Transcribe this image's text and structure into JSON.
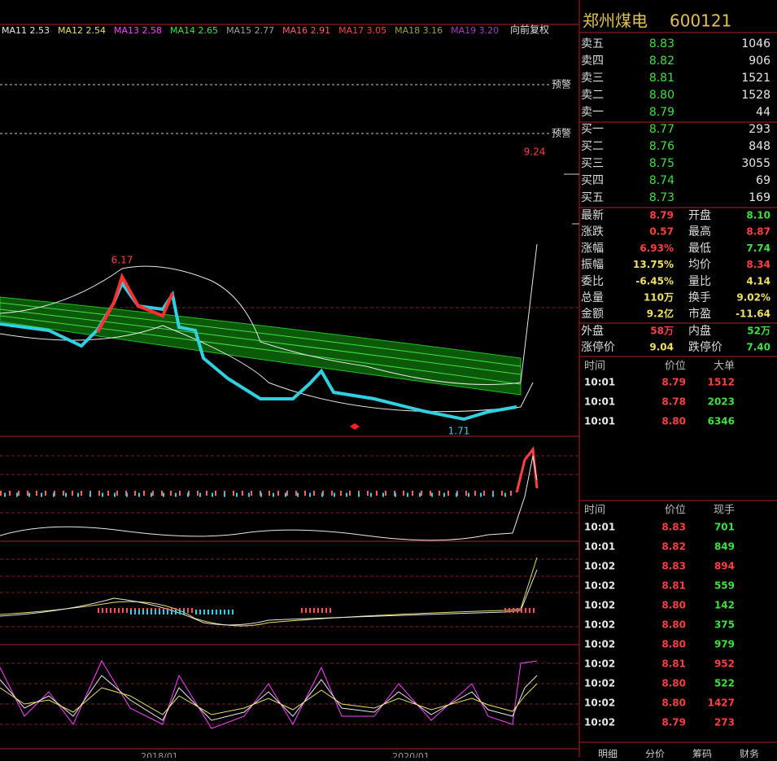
{
  "ma_legend": [
    {
      "text": "MA11 2.53",
      "color": "#e8e8e8"
    },
    {
      "text": "MA12 2.54",
      "color": "#e8e060"
    },
    {
      "text": "MA13 2.58",
      "color": "#ff40ff"
    },
    {
      "text": "MA14 2.65",
      "color": "#40e040"
    },
    {
      "text": "MA15 2.77",
      "color": "#a0a0a0"
    },
    {
      "text": "MA16 2.91",
      "color": "#ff6060"
    },
    {
      "text": "MA17 3.05",
      "color": "#ff4040"
    },
    {
      "text": "MA18 3.16",
      "color": "#a0a040"
    },
    {
      "text": "MA19 3.20",
      "color": "#a040c0"
    }
  ],
  "adjust": "向前复权",
  "alerts": [
    "预警",
    "预警"
  ],
  "annotations": {
    "high": "9.24",
    "peak": "6.17",
    "low": "1.71"
  },
  "date_labels": [
    "2018/01",
    "2020/01"
  ],
  "stock": {
    "name": "郑州煤电",
    "code": "600121"
  },
  "asks": [
    {
      "label": "卖五",
      "price": "8.83",
      "volume": "1046"
    },
    {
      "label": "卖四",
      "price": "8.82",
      "volume": "906"
    },
    {
      "label": "卖三",
      "price": "8.81",
      "volume": "1521"
    },
    {
      "label": "卖二",
      "price": "8.80",
      "volume": "1528"
    },
    {
      "label": "卖一",
      "price": "8.79",
      "volume": "44"
    }
  ],
  "bids": [
    {
      "label": "买一",
      "price": "8.77",
      "volume": "293"
    },
    {
      "label": "买二",
      "price": "8.76",
      "volume": "848"
    },
    {
      "label": "买三",
      "price": "8.75",
      "volume": "3055"
    },
    {
      "label": "买四",
      "price": "8.74",
      "volume": "69"
    },
    {
      "label": "买五",
      "price": "8.73",
      "volume": "169"
    }
  ],
  "stats": [
    [
      {
        "label": "最新",
        "value": "8.79",
        "color": "#ff4040"
      },
      {
        "label": "开盘",
        "value": "8.10",
        "color": "#40e040"
      }
    ],
    [
      {
        "label": "涨跌",
        "value": "0.57",
        "color": "#ff4040"
      },
      {
        "label": "最高",
        "value": "8.87",
        "color": "#ff4040"
      }
    ],
    [
      {
        "label": "涨幅",
        "value": "6.93%",
        "color": "#ff4040"
      },
      {
        "label": "最低",
        "value": "7.74",
        "color": "#40e040"
      }
    ],
    [
      {
        "label": "振幅",
        "value": "13.75%",
        "color": "#f0e060"
      },
      {
        "label": "均价",
        "value": "8.34",
        "color": "#ff4040"
      }
    ],
    [
      {
        "label": "委比",
        "value": "-6.45%",
        "color": "#f0e060"
      },
      {
        "label": "量比",
        "value": "4.14",
        "color": "#f0e060"
      }
    ],
    [
      {
        "label": "总量",
        "value": "110万",
        "color": "#f0e060"
      },
      {
        "label": "换手",
        "value": "9.02%",
        "color": "#f0e060"
      }
    ],
    [
      {
        "label": "金额",
        "value": "9.2亿",
        "color": "#f0e060"
      },
      {
        "label": "市盈",
        "value": "-11.64",
        "color": "#f0e060"
      }
    ]
  ],
  "flow": [
    [
      {
        "label": "外盘",
        "value": "58万",
        "color": "#ff4040"
      },
      {
        "label": "内盘",
        "value": "52万",
        "color": "#40e040"
      }
    ],
    [
      {
        "label": "涨停价",
        "value": "9.04",
        "color": "#f0e060"
      },
      {
        "label": "跌停价",
        "value": "7.40",
        "color": "#40e040"
      }
    ]
  ],
  "big_trades": {
    "headers": [
      "时间",
      "价位",
      "大单"
    ],
    "rows": [
      {
        "time": "10:01",
        "price": "8.79",
        "volume": "1512",
        "color": "#ff4040"
      },
      {
        "time": "10:01",
        "price": "8.78",
        "volume": "2023",
        "color": "#40e040"
      },
      {
        "time": "10:01",
        "price": "8.80",
        "volume": "6346",
        "color": "#40e040"
      }
    ]
  },
  "trades": {
    "headers": [
      "时间",
      "价位",
      "现手"
    ],
    "rows": [
      {
        "time": "10:01",
        "price": "8.83",
        "volume": "701",
        "color": "#40e040"
      },
      {
        "time": "10:01",
        "price": "8.82",
        "volume": "849",
        "color": "#40e040"
      },
      {
        "time": "10:02",
        "price": "8.83",
        "volume": "894",
        "color": "#ff4040"
      },
      {
        "time": "10:02",
        "price": "8.81",
        "volume": "559",
        "color": "#40e040"
      },
      {
        "time": "10:02",
        "price": "8.80",
        "volume": "142",
        "color": "#40e040"
      },
      {
        "time": "10:02",
        "price": "8.80",
        "volume": "375",
        "color": "#40e040"
      },
      {
        "time": "10:02",
        "price": "8.80",
        "volume": "979",
        "color": "#40e040"
      },
      {
        "time": "10:02",
        "price": "8.81",
        "volume": "952",
        "color": "#ff4040"
      },
      {
        "time": "10:02",
        "price": "8.80",
        "volume": "522",
        "color": "#40e040"
      },
      {
        "time": "10:02",
        "price": "8.80",
        "volume": "1427",
        "color": "#ff4040"
      },
      {
        "time": "10:02",
        "price": "8.79",
        "volume": "273",
        "color": "#ff4040"
      }
    ]
  },
  "tabs": [
    "明细",
    "分价",
    "筹码",
    "财务"
  ]
}
